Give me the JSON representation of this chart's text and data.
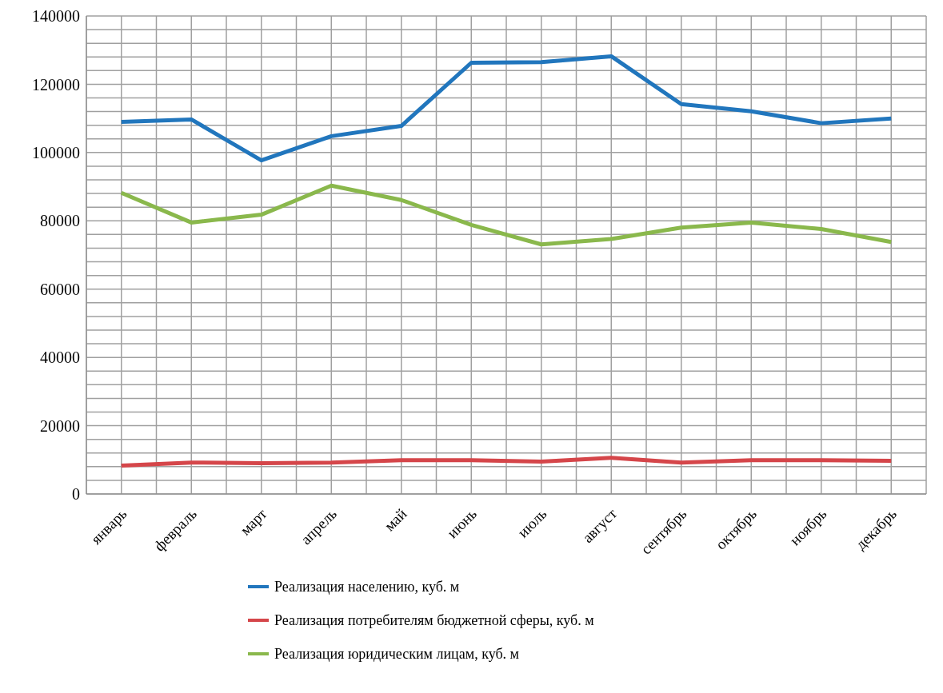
{
  "chart_data": {
    "type": "line",
    "categories": [
      "январь",
      "февраль",
      "март",
      "апрель",
      "май",
      "июнь",
      "июль",
      "август",
      "сентябрь",
      "октябрь",
      "ноябрь",
      "декабрь"
    ],
    "series": [
      {
        "name": "Реализация населению, куб. м",
        "color": "#2176bd",
        "values": [
          109000,
          109700,
          97700,
          104800,
          107800,
          126300,
          126500,
          128200,
          114200,
          112100,
          108600,
          110000
        ]
      },
      {
        "name": "Реализация потребителям бюджетной сферы, куб. м",
        "color": "#d5464a",
        "values": [
          8300,
          9200,
          9000,
          9200,
          9900,
          9900,
          9500,
          10600,
          9200,
          9900,
          9900,
          9700
        ]
      },
      {
        "name": "Реализация юридическим лицам, куб. м",
        "color": "#8ab84c",
        "values": [
          88200,
          79500,
          81800,
          90300,
          86100,
          78800,
          73100,
          74700,
          78000,
          79500,
          77600,
          73800
        ]
      }
    ],
    "ylim": [
      0,
      140000
    ],
    "yticks": [
      0,
      {
        "value": 4000,
        "label": null
      },
      {
        "value": 8000,
        "label": null
      },
      {
        "value": 12000,
        "label": null
      },
      {
        "value": 16000,
        "label": null
      },
      20000,
      {
        "value": 24000,
        "label": null
      },
      {
        "value": 28000,
        "label": null
      },
      {
        "value": 32000,
        "label": null
      },
      {
        "value": 36000,
        "label": null
      },
      40000,
      {
        "value": 44000,
        "label": null
      },
      {
        "value": 48000,
        "label": null
      },
      {
        "value": 52000,
        "label": null
      },
      {
        "value": 56000,
        "label": null
      },
      60000,
      {
        "value": 64000,
        "label": null
      },
      {
        "value": 68000,
        "label": null
      },
      {
        "value": 72000,
        "label": null
      },
      {
        "value": 76000,
        "label": null
      },
      80000,
      {
        "value": 84000,
        "label": null
      },
      {
        "value": 88000,
        "label": null
      },
      {
        "value": 92000,
        "label": null
      },
      {
        "value": 96000,
        "label": null
      },
      100000,
      {
        "value": 104000,
        "label": null
      },
      {
        "value": 108000,
        "label": null
      },
      {
        "value": 112000,
        "label": null
      },
      {
        "value": 116000,
        "label": null
      },
      120000,
      {
        "value": 124000,
        "label": null
      },
      {
        "value": 128000,
        "label": null
      },
      {
        "value": 132000,
        "label": null
      },
      {
        "value": 136000,
        "label": null
      },
      140000
    ],
    "grid": true,
    "legend": "bottom",
    "marker": "none",
    "line_style": "solid"
  }
}
